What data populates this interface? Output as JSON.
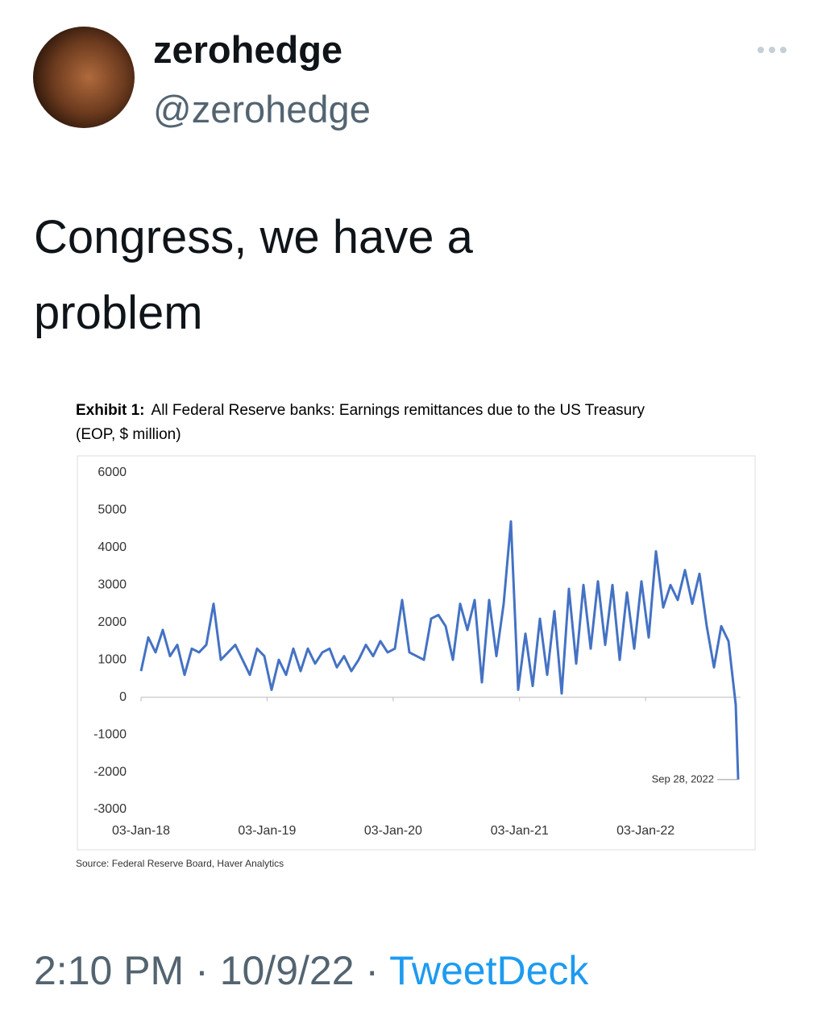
{
  "tweet": {
    "name": "zerohedge",
    "handle": "@zerohedge",
    "text": "Congress, we have a problem",
    "time": "2:10 PM",
    "separator": "·",
    "date": "10/9/22",
    "client": "TweetDeck"
  },
  "chart_data": {
    "type": "line",
    "title_label": "Exhibit 1:",
    "title": "All Federal Reserve banks: Earnings remittances due to the US Treasury",
    "subtitle": "(EOP, $ million)",
    "source": "Source: Federal Reserve Board, Haver Analytics",
    "annotation": "Sep 28, 2022",
    "x": [
      "2018-01-03",
      "2018-01-24",
      "2018-02-14",
      "2018-03-07",
      "2018-03-28",
      "2018-04-18",
      "2018-05-09",
      "2018-05-30",
      "2018-06-20",
      "2018-07-11",
      "2018-08-01",
      "2018-08-22",
      "2018-09-12",
      "2018-10-03",
      "2018-10-24",
      "2018-11-14",
      "2018-12-05",
      "2018-12-26",
      "2019-01-16",
      "2019-02-06",
      "2019-02-27",
      "2019-03-20",
      "2019-04-10",
      "2019-05-01",
      "2019-05-22",
      "2019-06-12",
      "2019-07-03",
      "2019-07-24",
      "2019-08-14",
      "2019-09-04",
      "2019-09-25",
      "2019-10-16",
      "2019-11-06",
      "2019-11-27",
      "2019-12-18",
      "2020-01-08",
      "2020-01-29",
      "2020-02-19",
      "2020-03-11",
      "2020-04-01",
      "2020-04-22",
      "2020-05-13",
      "2020-06-03",
      "2020-06-24",
      "2020-07-15",
      "2020-08-05",
      "2020-08-26",
      "2020-09-16",
      "2020-10-07",
      "2020-10-28",
      "2020-11-18",
      "2020-12-09",
      "2020-12-30",
      "2021-01-20",
      "2021-02-10",
      "2021-03-03",
      "2021-03-24",
      "2021-04-14",
      "2021-05-05",
      "2021-05-26",
      "2021-06-16",
      "2021-07-07",
      "2021-07-28",
      "2021-08-18",
      "2021-09-08",
      "2021-09-29",
      "2021-10-20",
      "2021-11-10",
      "2021-12-01",
      "2021-12-22",
      "2022-01-12",
      "2022-02-02",
      "2022-02-23",
      "2022-03-16",
      "2022-04-06",
      "2022-04-27",
      "2022-05-18",
      "2022-06-08",
      "2022-06-29",
      "2022-07-20",
      "2022-08-10",
      "2022-08-31",
      "2022-09-21",
      "2022-09-28"
    ],
    "series": [
      {
        "color": "#4472c4",
        "values": [
          700,
          1600,
          1200,
          1800,
          1100,
          1400,
          600,
          1300,
          1200,
          1400,
          2500,
          1000,
          1200,
          1400,
          1000,
          600,
          1300,
          1100,
          200,
          1000,
          600,
          1300,
          700,
          1300,
          900,
          1200,
          1300,
          800,
          1100,
          700,
          1000,
          1400,
          1100,
          1500,
          1200,
          1300,
          2600,
          1200,
          1100,
          1000,
          2100,
          2200,
          1900,
          1000,
          2500,
          1800,
          2600,
          400,
          2600,
          1100,
          2500,
          4700,
          200,
          1700,
          300,
          2100,
          600,
          2300,
          100,
          2900,
          900,
          3000,
          1300,
          3100,
          1400,
          3000,
          1000,
          2800,
          1300,
          3100,
          1600,
          3900,
          2400,
          3000,
          2600,
          3400,
          2500,
          3300,
          1900,
          800,
          1900,
          1500,
          -200,
          -2200
        ]
      }
    ],
    "xlim": [
      "2018-01-03",
      "2022-10-05"
    ],
    "xticks": [
      {
        "value": "2018-01-03",
        "label": "03-Jan-18"
      },
      {
        "value": "2019-01-03",
        "label": "03-Jan-19"
      },
      {
        "value": "2020-01-03",
        "label": "03-Jan-20"
      },
      {
        "value": "2021-01-03",
        "label": "03-Jan-21"
      },
      {
        "value": "2022-01-03",
        "label": "03-Jan-22"
      }
    ],
    "ylim": [
      -3000,
      6000
    ],
    "yticks": [
      -3000,
      -2000,
      -1000,
      0,
      1000,
      2000,
      3000,
      4000,
      5000,
      6000
    ],
    "grid": false
  }
}
